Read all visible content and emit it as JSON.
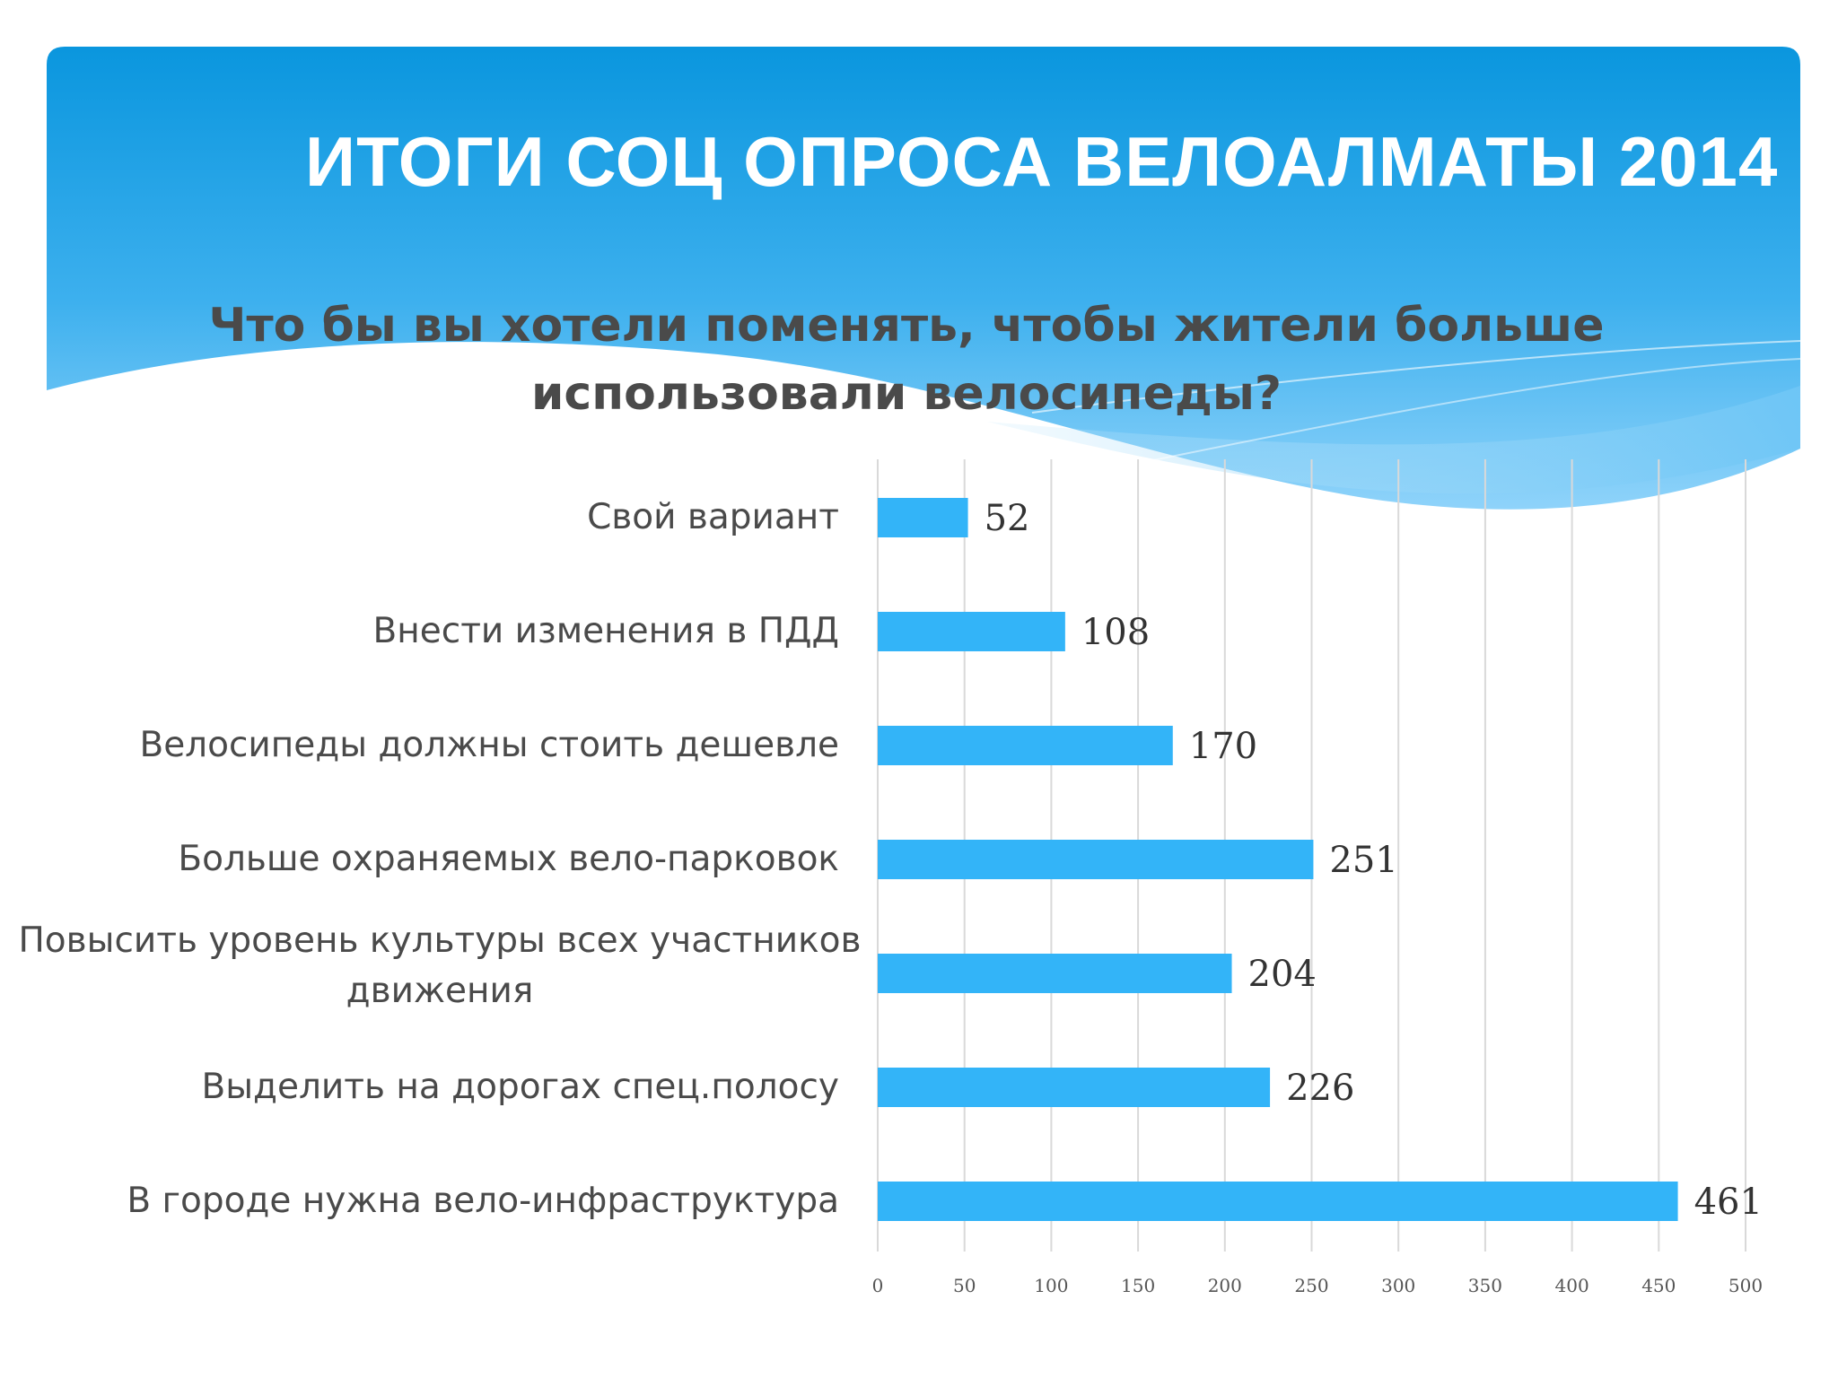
{
  "header": {
    "title": "ИТОГИ СОЦ ОПРОСА ВЕЛОАЛМАТЫ 2014"
  },
  "colors": {
    "header_blue": "#0a96de",
    "bar": "#33b4f8",
    "grid": "#d9d9d9"
  },
  "chart_data": {
    "type": "bar",
    "orientation": "horizontal",
    "title": "Что бы вы хотели поменять, чтобы жители больше использовали велосипеды?",
    "categories": [
      "Свой вариант",
      "Внести изменения в ПДД",
      "Велосипеды должны стоить дешевле",
      "Больше охраняемых вело-парковок",
      "Повысить уровень культуры всех участников движения",
      "Выделить на дорогах спец.полосу",
      "В городе нужна вело-инфраструктура"
    ],
    "values": [
      52,
      108,
      170,
      251,
      204,
      226,
      461
    ],
    "xlim": [
      0,
      500
    ],
    "xticks": [
      0,
      50,
      100,
      150,
      200,
      250,
      300,
      350,
      400,
      450,
      500
    ],
    "grid": true,
    "legend": "none",
    "data_labels": true
  }
}
